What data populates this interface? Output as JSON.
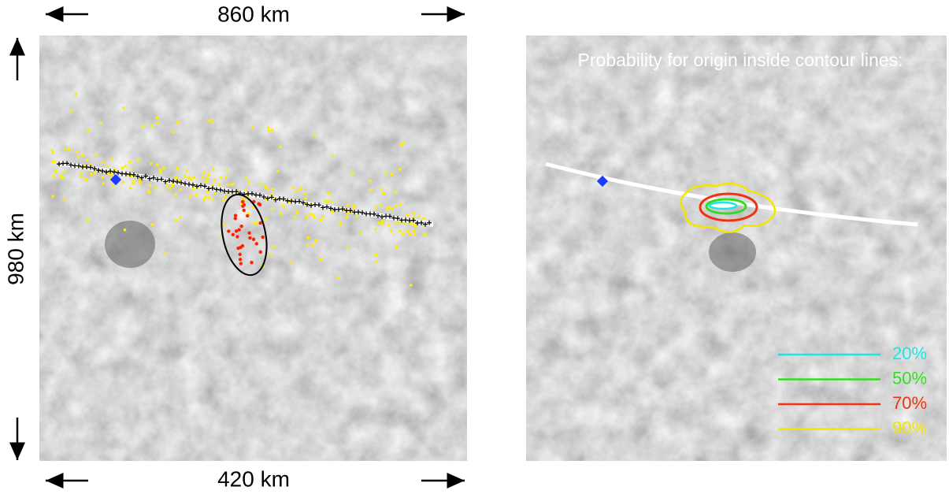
{
  "left_panel": {
    "top_scale": "860 km",
    "bottom_scale": "420 km",
    "side_scale": "980 km"
  },
  "right_panel": {
    "title": "Probability for origin inside contour lines:",
    "legend": [
      {
        "label": "20%",
        "color": "#19e6e6"
      },
      {
        "label": "50%",
        "color": "#33dd22"
      },
      {
        "label": "70%",
        "color": "#ee3311"
      },
      {
        "label": "90%",
        "color": "#f2e600"
      }
    ]
  }
}
